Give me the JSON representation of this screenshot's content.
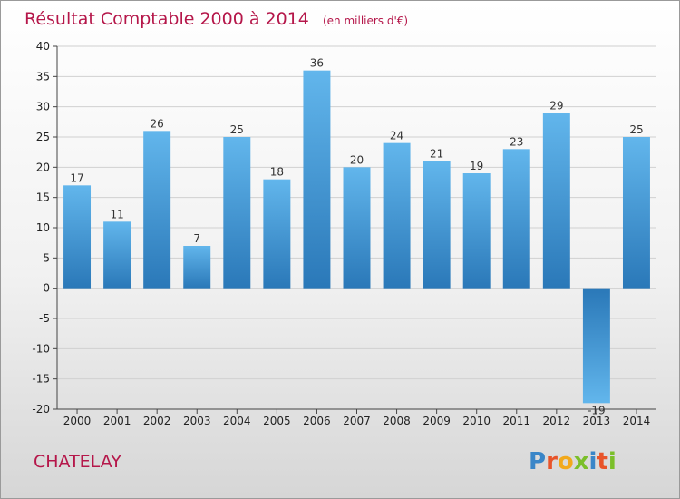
{
  "chart_data": {
    "type": "bar",
    "title": "Résultat Comptable 2000 à 2014",
    "subtitle": "(en milliers d'€)",
    "categories": [
      "2000",
      "2001",
      "2002",
      "2003",
      "2004",
      "2005",
      "2006",
      "2007",
      "2008",
      "2009",
      "2010",
      "2011",
      "2012",
      "2013",
      "2014"
    ],
    "values": [
      17,
      11,
      26,
      7,
      25,
      18,
      36,
      20,
      24,
      21,
      19,
      23,
      29,
      -19,
      25
    ],
    "ylim": [
      -20,
      40
    ],
    "yticks": [
      40,
      35,
      30,
      25,
      20,
      15,
      10,
      5,
      0,
      -5,
      -10,
      -15,
      -20
    ],
    "xlabel": "",
    "ylabel": "",
    "grid": true
  },
  "footer": {
    "town": "CHATELAY",
    "logo": "Proxiti"
  },
  "colors": {
    "bar_light": "#5fb3ea",
    "bar_dark": "#2a78b8",
    "title": "#b5174a",
    "grid": "#d0d0d0"
  }
}
